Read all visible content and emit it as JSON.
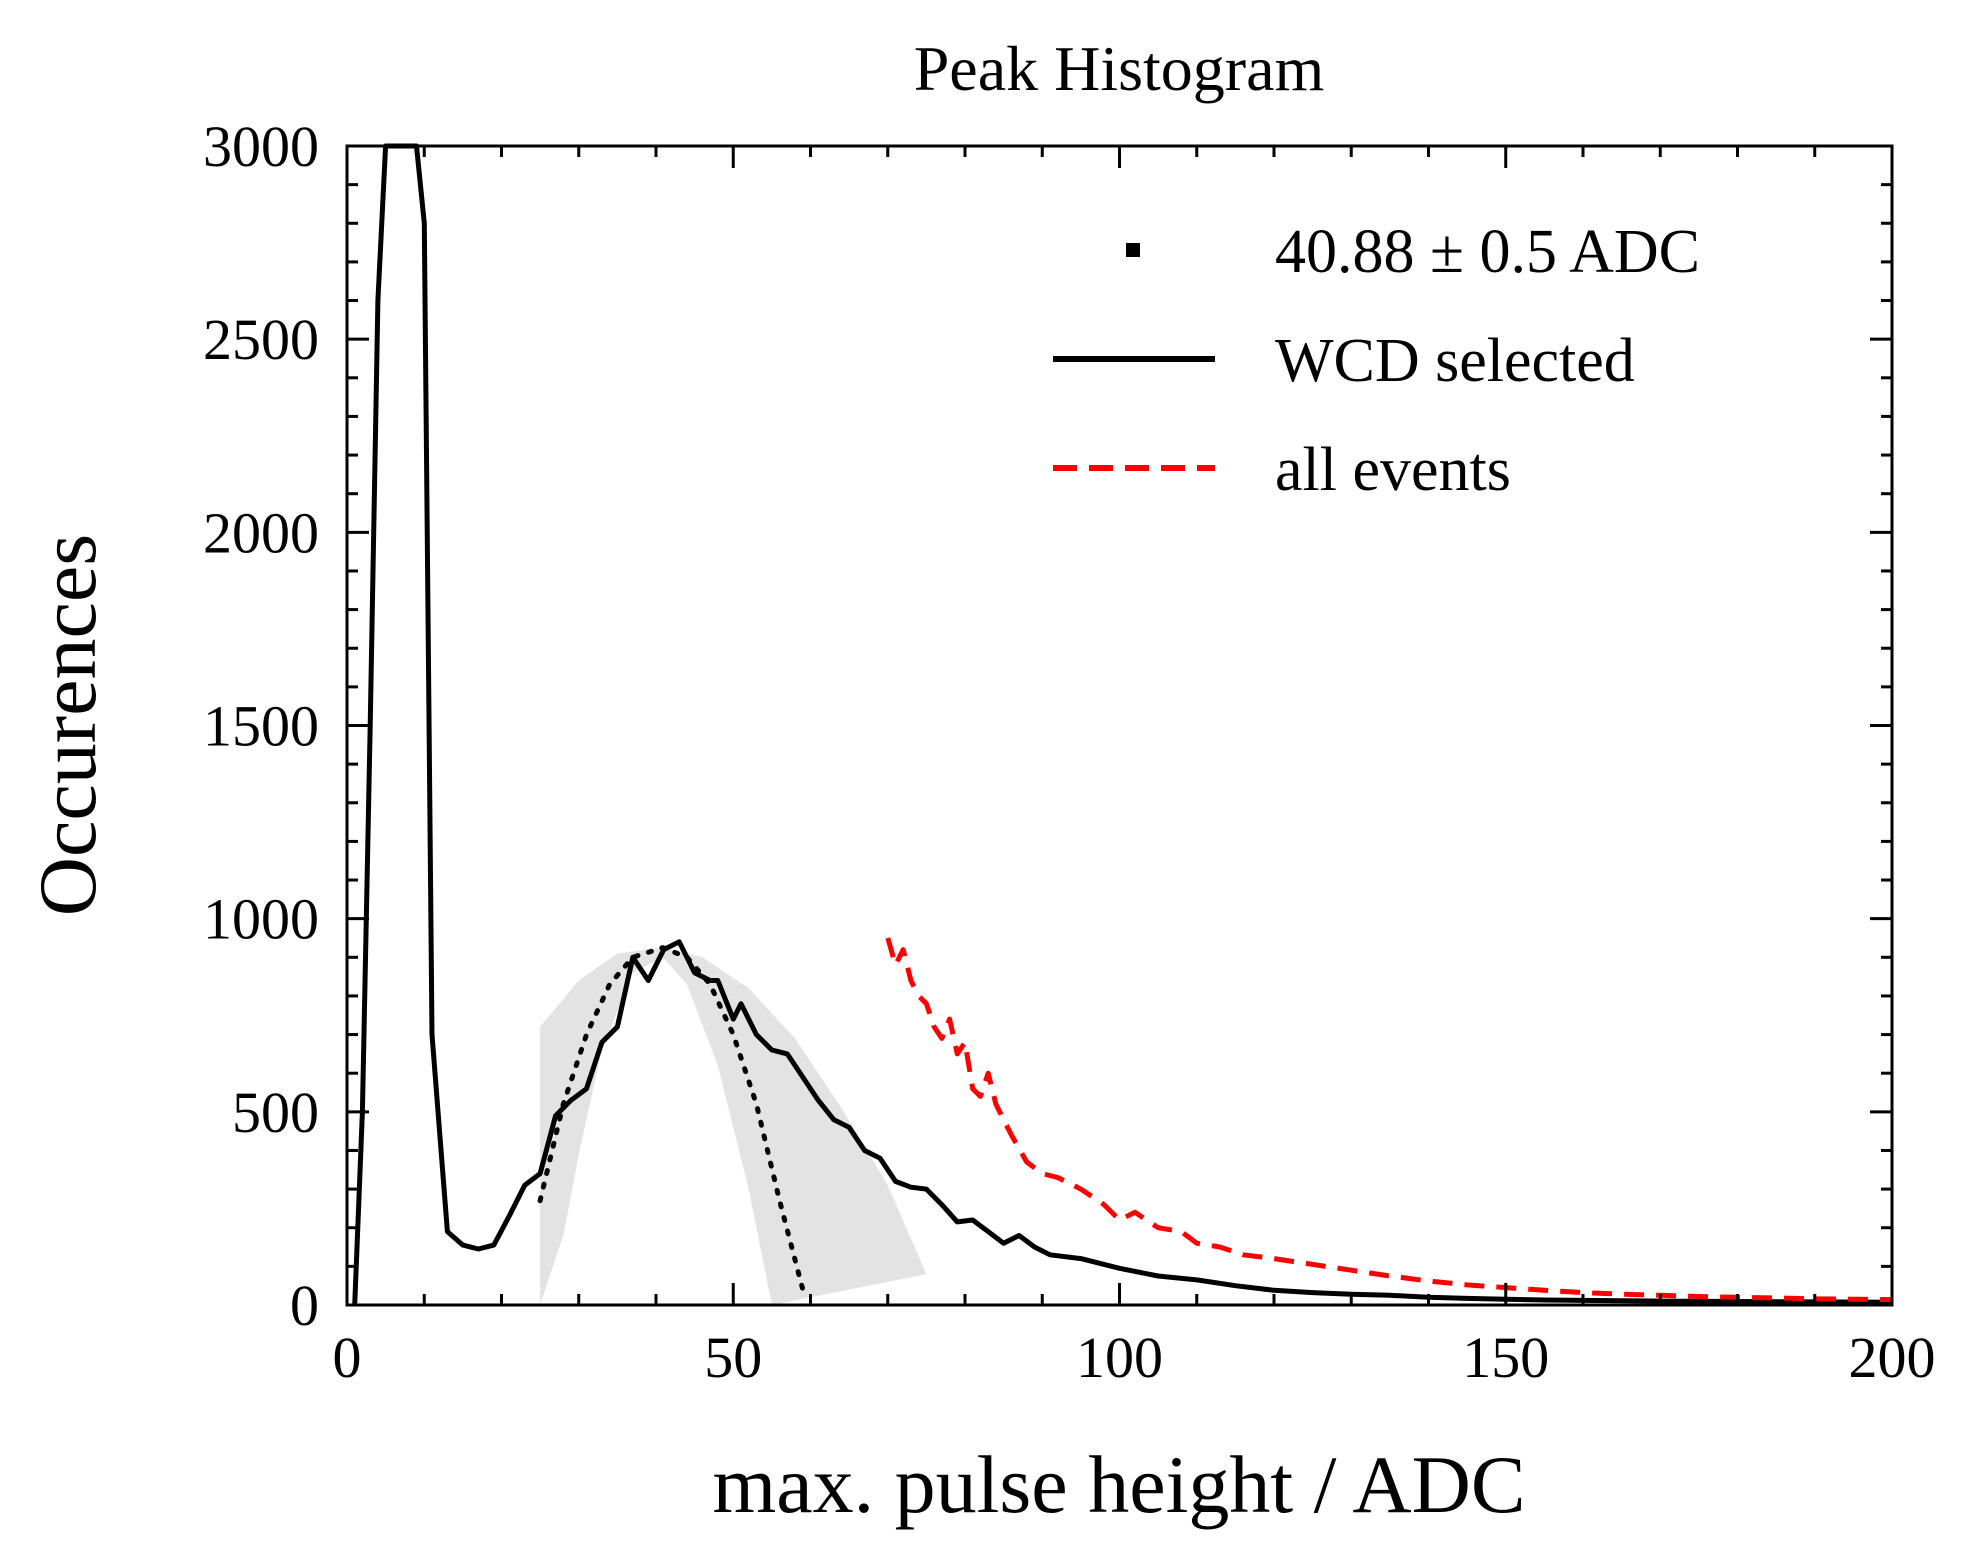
{
  "chart_data": {
    "type": "line",
    "title": "Peak Histogram",
    "xlabel": "max. pulse height / ADC",
    "ylabel": "Occurences",
    "xlim": [
      0,
      200
    ],
    "ylim": [
      0,
      3000
    ],
    "x_ticks": [
      0,
      50,
      100,
      150,
      200
    ],
    "y_ticks": [
      0,
      500,
      1000,
      1500,
      2000,
      2500,
      3000
    ],
    "x_tick_labels": [
      "0",
      "50",
      "100",
      "150",
      "200"
    ],
    "y_tick_labels": [
      "0",
      "500",
      "1000",
      "1500",
      "2000",
      "2500",
      "3000"
    ],
    "grid": false,
    "legend_position": "top-right",
    "legend": [
      {
        "label": "40.88 ± 0.5 ADC",
        "marker": "square"
      },
      {
        "label": "WCD selected",
        "style": "solid"
      },
      {
        "label": "all events",
        "style": "dashed"
      }
    ],
    "colors": {
      "wcd_selected": "#000000",
      "all_events": "#ff0000",
      "fit": "#000000",
      "band": "#e3e3e3"
    },
    "series": [
      {
        "name": "WCD selected",
        "style": "solid",
        "x": [
          1,
          2,
          3,
          4,
          5,
          6,
          7,
          8,
          9,
          10,
          11,
          13,
          15,
          17,
          19,
          21,
          23,
          25,
          27,
          29,
          31,
          33,
          35,
          37,
          39,
          41,
          43,
          45,
          47,
          48,
          50,
          51,
          53,
          55,
          57,
          59,
          61,
          63,
          65,
          67,
          69,
          71,
          73,
          75,
          77,
          79,
          81,
          83,
          85,
          87,
          89,
          91,
          95,
          100,
          105,
          110,
          115,
          120,
          125,
          130,
          135,
          140,
          145,
          150,
          155,
          160,
          170,
          180,
          190,
          200
        ],
        "y": [
          0,
          500,
          1500,
          2600,
          3000,
          3000,
          3000,
          3000,
          3000,
          2800,
          700,
          190,
          155,
          145,
          155,
          230,
          310,
          340,
          490,
          530,
          560,
          680,
          720,
          900,
          840,
          920,
          940,
          860,
          840,
          840,
          740,
          780,
          700,
          660,
          650,
          590,
          530,
          480,
          460,
          400,
          380,
          320,
          305,
          300,
          260,
          215,
          220,
          190,
          160,
          180,
          150,
          130,
          120,
          95,
          75,
          65,
          50,
          38,
          32,
          28,
          25,
          20,
          17,
          15,
          13,
          12,
          10,
          9,
          8,
          7
        ]
      },
      {
        "name": "all events",
        "style": "dashed",
        "x": [
          70,
          71,
          72,
          73,
          74,
          75,
          76,
          77,
          78,
          79,
          80,
          81,
          82,
          83,
          84,
          85,
          86,
          88,
          90,
          92,
          95,
          98,
          100,
          102,
          105,
          108,
          110,
          113,
          116,
          120,
          125,
          130,
          135,
          140,
          145,
          150,
          155,
          160,
          165,
          170,
          175,
          180,
          185,
          190,
          195,
          200
        ],
        "y": [
          950,
          880,
          920,
          840,
          800,
          780,
          720,
          690,
          740,
          650,
          680,
          560,
          540,
          600,
          520,
          480,
          440,
          370,
          340,
          330,
          300,
          260,
          220,
          240,
          200,
          190,
          160,
          150,
          130,
          120,
          105,
          90,
          75,
          62,
          52,
          45,
          38,
          32,
          28,
          25,
          22,
          20,
          18,
          16,
          15,
          14
        ]
      },
      {
        "name": "fit",
        "style": "dotted",
        "x": [
          25,
          28,
          31,
          34,
          37,
          40.88,
          44,
          47,
          50,
          53,
          56,
          59
        ],
        "y": [
          270,
          520,
          700,
          830,
          900,
          925,
          900,
          830,
          700,
          520,
          270,
          40
        ]
      }
    ],
    "band": {
      "x_upper": [
        25,
        30,
        35,
        40.88,
        46,
        52,
        58,
        64,
        70,
        75
      ],
      "y_upper": [
        720,
        840,
        910,
        925,
        900,
        820,
        690,
        510,
        310,
        80
      ],
      "x_lower": [
        55,
        52,
        48,
        44,
        40.88,
        37,
        33,
        30,
        28,
        25
      ],
      "y_lower": [
        0,
        300,
        620,
        830,
        900,
        860,
        660,
        390,
        180,
        0
      ]
    },
    "fit_result": {
      "mean": 40.88,
      "error": 0.5,
      "unit": "ADC"
    }
  }
}
